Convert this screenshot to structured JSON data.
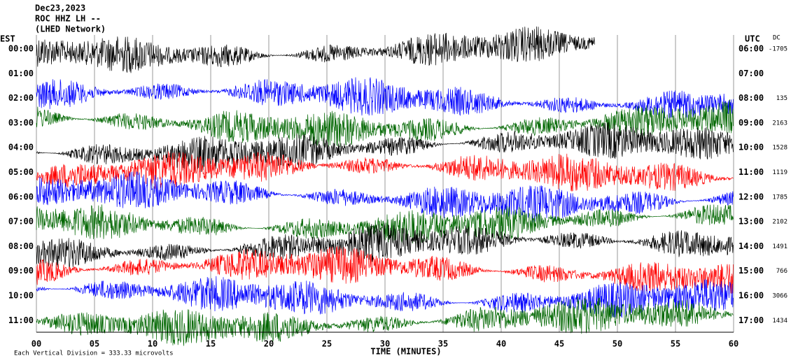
{
  "header": {
    "date": "Dec23,2023",
    "station": "ROC HHZ LH --",
    "network": "(LHED Network)"
  },
  "left_axis": {
    "title": "EST",
    "labels": [
      "00:00",
      "01:00",
      "02:00",
      "03:00",
      "04:00",
      "05:00",
      "06:00",
      "07:00",
      "08:00",
      "09:00",
      "10:00",
      "11:00"
    ]
  },
  "right_axis": {
    "title": "UTC",
    "labels": [
      "06:00",
      "07:00",
      "08:00",
      "09:00",
      "10:00",
      "11:00",
      "12:00",
      "13:00",
      "14:00",
      "15:00",
      "16:00",
      "17:00"
    ]
  },
  "dc": {
    "title": "DC",
    "values": [
      -1705,
      null,
      135,
      2163,
      1528,
      1119,
      1785,
      2102,
      1491,
      766,
      3066,
      1434
    ]
  },
  "x_axis": {
    "title": "TIME (MINUTES)",
    "labels": [
      "00",
      "05",
      "10",
      "15",
      "20",
      "25",
      "30",
      "35",
      "40",
      "45",
      "50",
      "55",
      "60"
    ]
  },
  "footer": "Each Vertical Division =  333.33 microvolts"
}
